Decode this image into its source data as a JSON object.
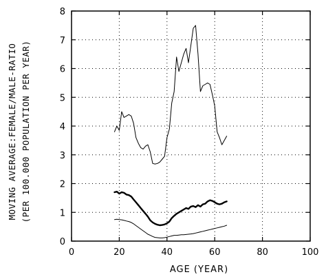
{
  "chart_data": {
    "type": "line",
    "xlabel": "AGE (YEAR)",
    "ylabel_line1": "MOVING AVERAGE:FEMALE/MALE-RATIO",
    "ylabel_line2": "(PER 100.000 POPULATION PER YEAR)",
    "xlim": [
      0,
      100
    ],
    "ylim": [
      0,
      8
    ],
    "x_ticks": [
      0,
      20,
      40,
      60,
      80,
      100
    ],
    "y_ticks": [
      0,
      1,
      2,
      3,
      4,
      5,
      6,
      7,
      8
    ],
    "grid": "dotted",
    "series": [
      {
        "stroke_width": 1,
        "values": [
          [
            18,
            3.8
          ],
          [
            19,
            4.0
          ],
          [
            20,
            3.85
          ],
          [
            21,
            4.5
          ],
          [
            22,
            4.3
          ],
          [
            23,
            4.35
          ],
          [
            24,
            4.4
          ],
          [
            25,
            4.35
          ],
          [
            26,
            4.1
          ],
          [
            27,
            3.6
          ],
          [
            28,
            3.4
          ],
          [
            29,
            3.25
          ],
          [
            30,
            3.2
          ],
          [
            31,
            3.3
          ],
          [
            32,
            3.35
          ],
          [
            33,
            3.1
          ],
          [
            34,
            2.7
          ],
          [
            35,
            2.68
          ],
          [
            36,
            2.7
          ],
          [
            37,
            2.75
          ],
          [
            38,
            2.85
          ],
          [
            39,
            2.95
          ],
          [
            40,
            3.6
          ],
          [
            41,
            3.9
          ],
          [
            42,
            4.8
          ],
          [
            43,
            5.2
          ],
          [
            44,
            6.4
          ],
          [
            45,
            5.9
          ],
          [
            46,
            6.2
          ],
          [
            47,
            6.5
          ],
          [
            48,
            6.7
          ],
          [
            49,
            6.2
          ],
          [
            50,
            6.8
          ],
          [
            51,
            7.4
          ],
          [
            52,
            7.5
          ],
          [
            53,
            6.5
          ],
          [
            54,
            5.2
          ],
          [
            55,
            5.4
          ],
          [
            56,
            5.45
          ],
          [
            57,
            5.5
          ],
          [
            58,
            5.45
          ],
          [
            59,
            5.1
          ],
          [
            60,
            4.7
          ],
          [
            61,
            3.8
          ],
          [
            62,
            3.6
          ],
          [
            63,
            3.35
          ],
          [
            64,
            3.5
          ],
          [
            65,
            3.65
          ]
        ]
      },
      {
        "stroke_width": 2.4,
        "values": [
          [
            18,
            1.7
          ],
          [
            19,
            1.72
          ],
          [
            20,
            1.65
          ],
          [
            21,
            1.7
          ],
          [
            22,
            1.68
          ],
          [
            23,
            1.62
          ],
          [
            24,
            1.6
          ],
          [
            25,
            1.55
          ],
          [
            26,
            1.45
          ],
          [
            27,
            1.35
          ],
          [
            28,
            1.25
          ],
          [
            29,
            1.15
          ],
          [
            30,
            1.05
          ],
          [
            31,
            0.95
          ],
          [
            32,
            0.85
          ],
          [
            33,
            0.72
          ],
          [
            34,
            0.65
          ],
          [
            35,
            0.6
          ],
          [
            36,
            0.57
          ],
          [
            37,
            0.55
          ],
          [
            38,
            0.56
          ],
          [
            39,
            0.58
          ],
          [
            40,
            0.62
          ],
          [
            41,
            0.68
          ],
          [
            42,
            0.8
          ],
          [
            43,
            0.88
          ],
          [
            44,
            0.95
          ],
          [
            45,
            1.0
          ],
          [
            46,
            1.05
          ],
          [
            47,
            1.1
          ],
          [
            48,
            1.15
          ],
          [
            49,
            1.12
          ],
          [
            50,
            1.2
          ],
          [
            51,
            1.22
          ],
          [
            52,
            1.18
          ],
          [
            53,
            1.25
          ],
          [
            54,
            1.2
          ],
          [
            55,
            1.28
          ],
          [
            56,
            1.3
          ],
          [
            57,
            1.38
          ],
          [
            58,
            1.42
          ],
          [
            59,
            1.4
          ],
          [
            60,
            1.35
          ],
          [
            61,
            1.3
          ],
          [
            62,
            1.28
          ],
          [
            63,
            1.3
          ],
          [
            64,
            1.35
          ],
          [
            65,
            1.38
          ]
        ]
      },
      {
        "stroke_width": 1,
        "values": [
          [
            18,
            0.75
          ],
          [
            19,
            0.76
          ],
          [
            20,
            0.75
          ],
          [
            21,
            0.74
          ],
          [
            22,
            0.72
          ],
          [
            23,
            0.7
          ],
          [
            24,
            0.68
          ],
          [
            25,
            0.65
          ],
          [
            26,
            0.6
          ],
          [
            27,
            0.54
          ],
          [
            28,
            0.48
          ],
          [
            29,
            0.42
          ],
          [
            30,
            0.36
          ],
          [
            31,
            0.3
          ],
          [
            32,
            0.24
          ],
          [
            33,
            0.2
          ],
          [
            34,
            0.16
          ],
          [
            35,
            0.13
          ],
          [
            36,
            0.12
          ],
          [
            37,
            0.11
          ],
          [
            38,
            0.11
          ],
          [
            39,
            0.12
          ],
          [
            40,
            0.14
          ],
          [
            41,
            0.16
          ],
          [
            42,
            0.18
          ],
          [
            43,
            0.2
          ],
          [
            44,
            0.2
          ],
          [
            45,
            0.21
          ],
          [
            46,
            0.22
          ],
          [
            47,
            0.22
          ],
          [
            48,
            0.23
          ],
          [
            49,
            0.24
          ],
          [
            50,
            0.25
          ],
          [
            51,
            0.26
          ],
          [
            52,
            0.28
          ],
          [
            53,
            0.3
          ],
          [
            54,
            0.32
          ],
          [
            55,
            0.34
          ],
          [
            56,
            0.36
          ],
          [
            57,
            0.38
          ],
          [
            58,
            0.4
          ],
          [
            59,
            0.42
          ],
          [
            60,
            0.44
          ],
          [
            61,
            0.46
          ],
          [
            62,
            0.48
          ],
          [
            63,
            0.5
          ],
          [
            64,
            0.52
          ],
          [
            65,
            0.55
          ]
        ]
      }
    ]
  }
}
